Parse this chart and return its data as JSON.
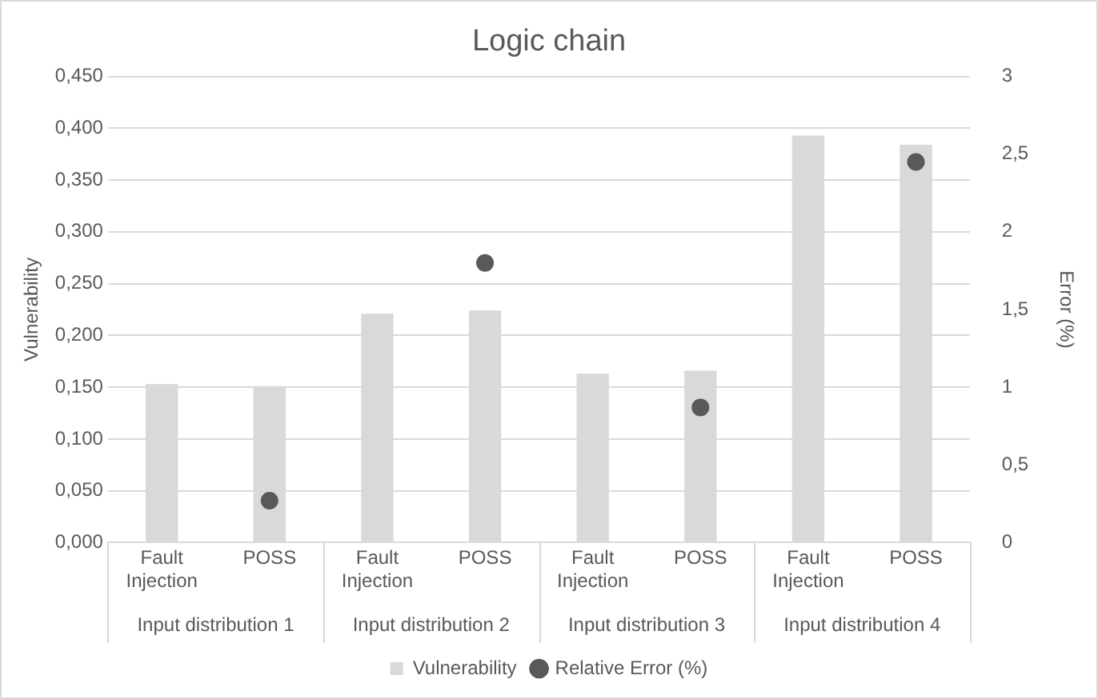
{
  "chart_data": {
    "type": "bar",
    "title": "Logic chain",
    "ylabel": "Vulnerability",
    "y2label": "Error (%)",
    "categories": [
      "Fault Injection",
      "POSS",
      "Fault Injection",
      "POSS",
      "Fault Injection",
      "POSS",
      "Fault Injection",
      "POSS"
    ],
    "annotations": [
      "Input distribution 1",
      "Input distribution 2",
      "Input distribution 3",
      "Input distribution 4"
    ],
    "series": [
      {
        "name": "Vulnerability",
        "color": "#d9d9d9",
        "values": [
          0.153,
          0.151,
          0.221,
          0.224,
          0.163,
          0.166,
          0.393,
          0.384
        ]
      },
      {
        "name": "Relative Error (%)",
        "type": "scatter",
        "axis": "y2",
        "color": "#595959",
        "values": [
          null,
          0.27,
          null,
          1.8,
          null,
          0.87,
          null,
          2.45
        ]
      }
    ],
    "marker": "circle",
    "ylim": [
      0,
      0.45
    ],
    "yticks": [
      {
        "value": 0,
        "label": "0,000"
      },
      {
        "value": 0.05,
        "label": "0,050"
      },
      {
        "value": 0.1,
        "label": "0,100"
      },
      {
        "value": 0.15,
        "label": "0,150"
      },
      {
        "value": 0.2,
        "label": "0,200"
      },
      {
        "value": 0.25,
        "label": "0,250"
      },
      {
        "value": 0.3,
        "label": "0,300"
      },
      {
        "value": 0.35,
        "label": "0,350"
      },
      {
        "value": 0.4,
        "label": "0,400"
      },
      {
        "value": 0.45,
        "label": "0,450"
      }
    ],
    "y2lim": [
      0,
      3
    ],
    "y2ticks": [
      0,
      {
        "value": 0.5,
        "label": "0,5"
      },
      1,
      {
        "value": 1.5,
        "label": "1,5"
      },
      2,
      {
        "value": 2.5,
        "label": "2,5"
      },
      3
    ],
    "grid": "y",
    "legend": "bottom"
  }
}
